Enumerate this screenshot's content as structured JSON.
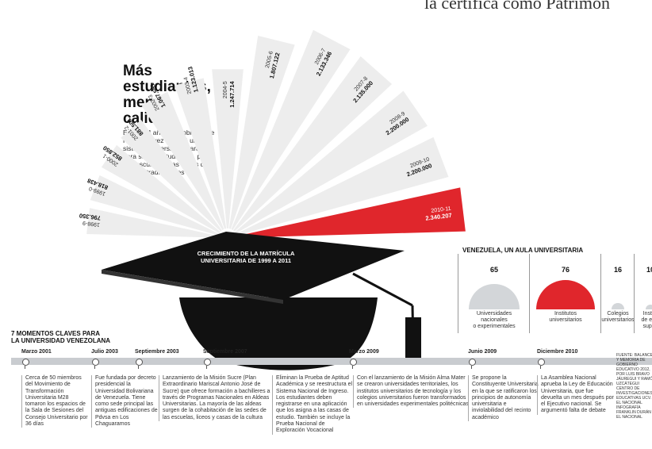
{
  "top_caption": "la certifica como Patrimon",
  "headline": {
    "line1": "Más",
    "line2": "estudiantes,",
    "line3": "menos",
    "line4": "calidad"
  },
  "intro": "En los 14 años de gobierno de Hugo Chávez se creó un sistema universitario paralelo para sumar estudiantes, pero se descuidaron las casas de estudio tradicionales",
  "cap_label": {
    "line1": "CRECIMIENTO DE LA MATRÍCULA",
    "line2": "UNIVERSITARIA DE 1999  A 2011"
  },
  "colors": {
    "bar": "#ededed",
    "highlight": "#e0262c",
    "cap": "#111111",
    "timeline": "#c9ccd0"
  },
  "chart_data": {
    "type": "bar",
    "title": "CRECIMIENTO DE LA MATRÍCULA UNIVERSITARIA DE 1999  A 2011",
    "categories": [
      "1998-9",
      "1999-0",
      "2000-1",
      "2001-2",
      "2002-3",
      "2003-4",
      "2004-5",
      "2005-6",
      "2006-7",
      "2007-8",
      "2008-9",
      "2009-10",
      "2010-11"
    ],
    "value_labels": [
      "796.350",
      "818.438",
      "852.850",
      "881.501",
      "1.067.551",
      "1.123.013",
      "1.247.714",
      "1.807.122",
      "2.133.346",
      "2.135.000",
      "2.200.000",
      "2.200.000",
      "2.340.207"
    ],
    "values": [
      796350,
      818438,
      852850,
      881501,
      1067551,
      1123013,
      1247714,
      1807122,
      2133346,
      2135000,
      2200000,
      2200000,
      2340207
    ],
    "highlight_category": "2010-11"
  },
  "aulas": {
    "title": "VENEZUELA, UN AULA UNIVERSITARIA",
    "items": [
      {
        "value": "65",
        "label_1": "Universidades",
        "label_2": "nacionales",
        "label_3": "o experimentales",
        "color": "#d3d6d9"
      },
      {
        "value": "76",
        "label_1": "Institutos",
        "label_2": "universitarios",
        "label_3": "",
        "color": "#e0262c"
      },
      {
        "value": "16",
        "label_1": "Colegios",
        "label_2": "universitarios",
        "label_3": "",
        "color": "#d3d6d9"
      },
      {
        "value": "10",
        "label_1": "Institu",
        "label_2": "de estu",
        "label_3": "superi",
        "color": "#d3d6d9"
      }
    ]
  },
  "timeline": {
    "title_line1": "7 MOMENTOS CLAVES PARA",
    "title_line2": "LA UNIVERSIDAD VENEZOLANA",
    "dates": [
      "Marzo 2001",
      "Julio 2003",
      "Septiembre 2003",
      "Septiembre 2007",
      "Marzo 2009",
      "Junio 2009",
      "Diciembre 2010"
    ],
    "events": [
      "Cerca de 50 miembros del Movimiento de Transformación Universitaria M28 tomaron los espacios de la Sala de Sesiones del Consejo Universitario por 36 días",
      "Fue fundada por decreto presidencial la Universidad Bolivariana de Venezuela. Tiene como sede principal las antiguas edificaciones de Pdvsa en Los Chaguaramos",
      "Lanzamiento de la Misión Sucre (Plan Extraordinario Mariscal Antonio José de Sucre) que ofrece formación a bachilleres a través de Programas Nacionales en Aldeas Universitarias. La mayoría de las aldeas surgen de la cohabitación de las sedes de las escuelas, liceos y casas de la cultura",
      "Eliminan la Prueba de Aptitud Académica y se reestructura el Sistema Nacional de Ingreso. Los estudiantes deben registrarse en una aplicación que los asigna a las casas de estudio. También se incluye la Prueba Nacional de Exploración Vocacional",
      "Con el lanzamiento de la Misión Alma Mater se crearon universidades territoriales, los institutos universitarios de tecnología y los colegios universitarios fueron transformados en universidades experimentales politécnicas",
      "Se propone la Constituyente Universitaria en la que se ratificaron los principios de autonomía universitaria e inviolabilidad del recinto académico",
      "La Asamblea Nacional aprueba la Ley de Educación Universitaria, que fue devuelta un mes después por el Ejecutivo nacional. Se argumentó falta de debate"
    ]
  },
  "source": "FUENTE: BALANCE Y MEMORIA DE GOBIERNO EDUCATIVO 2012, POR LUIS BRAVO JÁUREGUI Y RAMÓN UZCÁTEGUI CENTRO DE INVESTIGACIONES EDUCATIVAS UCV. EL NACIONAL INFOGRAFÍA FRANKLIN DURÁN EL NACIONAL"
}
